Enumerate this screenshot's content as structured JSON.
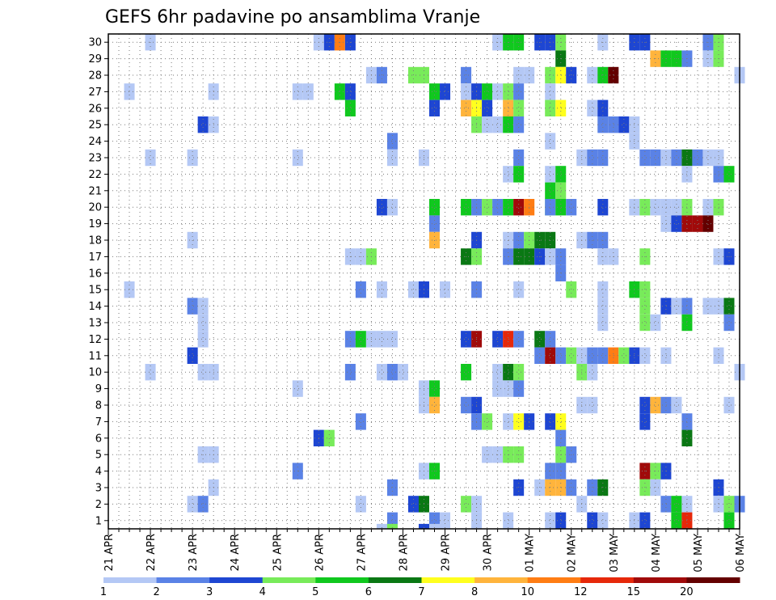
{
  "chart_data": {
    "type": "heatmap",
    "title": "GEFS 6hr padavine po ansamblima Vranje",
    "y_members": [
      1,
      30
    ],
    "y_ticks": [
      "1",
      "2",
      "3",
      "4",
      "5",
      "6",
      "7",
      "8",
      "9",
      "10",
      "11",
      "12",
      "13",
      "14",
      "15",
      "16",
      "17",
      "18",
      "19",
      "20",
      "21",
      "22",
      "23",
      "24",
      "25",
      "26",
      "27",
      "28",
      "29",
      "30"
    ],
    "x_range": [
      0,
      60
    ],
    "x_ticks": [
      {
        "t": 0,
        "label": "21 APR"
      },
      {
        "t": 4,
        "label": "22 APR"
      },
      {
        "t": 8,
        "label": "23 APR"
      },
      {
        "t": 12,
        "label": "24 APR"
      },
      {
        "t": 16,
        "label": "25 APR"
      },
      {
        "t": 20,
        "label": "26 APR"
      },
      {
        "t": 24,
        "label": "27 APR"
      },
      {
        "t": 28,
        "label": "28 APR"
      },
      {
        "t": 32,
        "label": "29 APR"
      },
      {
        "t": 36,
        "label": "30 APR"
      },
      {
        "t": 40,
        "label": "01 MAY"
      },
      {
        "t": 44,
        "label": "02 MAY"
      },
      {
        "t": 48,
        "label": "03 MAY"
      },
      {
        "t": 52,
        "label": "04 MAY"
      },
      {
        "t": 56,
        "label": "05 MAY"
      },
      {
        "t": 60,
        "label": "06 MAY"
      }
    ],
    "legend": {
      "boundaries": [
        "1",
        "2",
        "3",
        "4",
        "5",
        "6",
        "7",
        "8",
        "10",
        "12",
        "15",
        "20"
      ],
      "colors": [
        "#b4c8f5",
        "#5a82e6",
        "#1e46d2",
        "#78eb5a",
        "#10c81e",
        "#0a7814",
        "#ffff1e",
        "#ffb43c",
        "#ff7d14",
        "#e6280a",
        "#a00a0a",
        "#640000"
      ]
    },
    "cells": [
      [
        4,
        30,
        0
      ],
      [
        20,
        30,
        0
      ],
      [
        21,
        30,
        2
      ],
      [
        22,
        30,
        8
      ],
      [
        23,
        30,
        2
      ],
      [
        37,
        30,
        0
      ],
      [
        38,
        30,
        4
      ],
      [
        39,
        30,
        4
      ],
      [
        41,
        30,
        2
      ],
      [
        42,
        30,
        2
      ],
      [
        43,
        30,
        3
      ],
      [
        47,
        30,
        0
      ],
      [
        50,
        30,
        2
      ],
      [
        51,
        30,
        2
      ],
      [
        57,
        30,
        1
      ],
      [
        58,
        30,
        3
      ],
      [
        43,
        29,
        5
      ],
      [
        52,
        29,
        7
      ],
      [
        53,
        29,
        4
      ],
      [
        54,
        29,
        4
      ],
      [
        55,
        29,
        1
      ],
      [
        57,
        29,
        0
      ],
      [
        58,
        29,
        3
      ],
      [
        25,
        28,
        0
      ],
      [
        26,
        28,
        1
      ],
      [
        29,
        28,
        3
      ],
      [
        30,
        28,
        3
      ],
      [
        34,
        28,
        1
      ],
      [
        39,
        28,
        0
      ],
      [
        40,
        28,
        0
      ],
      [
        42,
        28,
        3
      ],
      [
        43,
        28,
        6
      ],
      [
        44,
        28,
        2
      ],
      [
        46,
        28,
        0
      ],
      [
        47,
        28,
        4
      ],
      [
        48,
        28,
        11
      ],
      [
        60,
        28,
        0
      ],
      [
        2,
        27,
        0
      ],
      [
        10,
        27,
        0
      ],
      [
        18,
        27,
        0
      ],
      [
        19,
        27,
        0
      ],
      [
        22,
        27,
        4
      ],
      [
        23,
        27,
        2
      ],
      [
        31,
        27,
        4
      ],
      [
        32,
        27,
        2
      ],
      [
        34,
        27,
        0
      ],
      [
        35,
        27,
        2
      ],
      [
        36,
        27,
        4
      ],
      [
        37,
        27,
        0
      ],
      [
        38,
        27,
        3
      ],
      [
        39,
        27,
        1
      ],
      [
        42,
        27,
        0
      ],
      [
        23,
        26,
        4
      ],
      [
        31,
        26,
        2
      ],
      [
        34,
        26,
        7
      ],
      [
        35,
        26,
        6
      ],
      [
        36,
        26,
        2
      ],
      [
        38,
        26,
        7
      ],
      [
        39,
        26,
        3
      ],
      [
        42,
        26,
        3
      ],
      [
        43,
        26,
        6
      ],
      [
        46,
        26,
        0
      ],
      [
        47,
        26,
        2
      ],
      [
        9,
        25,
        2
      ],
      [
        10,
        25,
        0
      ],
      [
        35,
        25,
        3
      ],
      [
        36,
        25,
        0
      ],
      [
        37,
        25,
        0
      ],
      [
        38,
        25,
        4
      ],
      [
        39,
        25,
        1
      ],
      [
        47,
        25,
        1
      ],
      [
        48,
        25,
        1
      ],
      [
        49,
        25,
        2
      ],
      [
        50,
        25,
        0
      ],
      [
        27,
        24,
        1
      ],
      [
        42,
        24,
        0
      ],
      [
        50,
        24,
        0
      ],
      [
        4,
        23,
        0
      ],
      [
        8,
        23,
        0
      ],
      [
        18,
        23,
        0
      ],
      [
        27,
        23,
        0
      ],
      [
        30,
        23,
        0
      ],
      [
        39,
        23,
        1
      ],
      [
        45,
        23,
        0
      ],
      [
        46,
        23,
        1
      ],
      [
        47,
        23,
        1
      ],
      [
        51,
        23,
        1
      ],
      [
        52,
        23,
        1
      ],
      [
        53,
        23,
        0
      ],
      [
        54,
        23,
        1
      ],
      [
        55,
        23,
        5
      ],
      [
        56,
        23,
        1
      ],
      [
        57,
        23,
        0
      ],
      [
        58,
        23,
        0
      ],
      [
        38,
        22,
        0
      ],
      [
        39,
        22,
        4
      ],
      [
        42,
        22,
        0
      ],
      [
        43,
        22,
        4
      ],
      [
        55,
        22,
        0
      ],
      [
        58,
        22,
        1
      ],
      [
        59,
        22,
        4
      ],
      [
        42,
        21,
        4
      ],
      [
        43,
        21,
        3
      ],
      [
        42,
        20,
        3
      ],
      [
        43,
        20,
        4
      ],
      [
        44,
        20,
        1
      ],
      [
        26,
        20,
        2
      ],
      [
        27,
        20,
        0
      ],
      [
        31,
        20,
        4
      ],
      [
        34,
        20,
        4
      ],
      [
        35,
        20,
        1
      ],
      [
        36,
        20,
        3
      ],
      [
        37,
        20,
        1
      ],
      [
        38,
        20,
        4
      ],
      [
        39,
        20,
        10
      ],
      [
        40,
        20,
        8
      ],
      [
        42,
        20,
        1
      ],
      [
        47,
        20,
        2
      ],
      [
        50,
        20,
        0
      ],
      [
        51,
        20,
        3
      ],
      [
        52,
        20,
        0
      ],
      [
        53,
        20,
        0
      ],
      [
        54,
        20,
        0
      ],
      [
        55,
        20,
        3
      ],
      [
        57,
        20,
        0
      ],
      [
        58,
        20,
        3
      ],
      [
        31,
        19,
        1
      ],
      [
        53,
        19,
        0
      ],
      [
        54,
        19,
        2
      ],
      [
        55,
        19,
        10
      ],
      [
        56,
        19,
        10
      ],
      [
        57,
        19,
        11
      ],
      [
        8,
        18,
        0
      ],
      [
        31,
        18,
        7
      ],
      [
        35,
        18,
        2
      ],
      [
        38,
        18,
        0
      ],
      [
        39,
        18,
        1
      ],
      [
        40,
        18,
        3
      ],
      [
        41,
        18,
        5
      ],
      [
        42,
        18,
        5
      ],
      [
        45,
        18,
        0
      ],
      [
        46,
        18,
        1
      ],
      [
        47,
        18,
        1
      ],
      [
        23,
        17,
        0
      ],
      [
        24,
        17,
        0
      ],
      [
        25,
        17,
        3
      ],
      [
        34,
        17,
        5
      ],
      [
        35,
        17,
        3
      ],
      [
        38,
        17,
        1
      ],
      [
        39,
        17,
        5
      ],
      [
        40,
        17,
        5
      ],
      [
        41,
        17,
        2
      ],
      [
        42,
        17,
        0
      ],
      [
        43,
        17,
        1
      ],
      [
        47,
        17,
        0
      ],
      [
        48,
        17,
        0
      ],
      [
        51,
        17,
        3
      ],
      [
        58,
        17,
        0
      ],
      [
        59,
        17,
        2
      ],
      [
        43,
        16,
        1
      ],
      [
        2,
        15,
        0
      ],
      [
        24,
        15,
        1
      ],
      [
        26,
        15,
        0
      ],
      [
        29,
        15,
        0
      ],
      [
        30,
        15,
        2
      ],
      [
        32,
        15,
        0
      ],
      [
        35,
        15,
        1
      ],
      [
        39,
        15,
        0
      ],
      [
        44,
        15,
        3
      ],
      [
        47,
        15,
        0
      ],
      [
        50,
        15,
        4
      ],
      [
        51,
        15,
        3
      ],
      [
        8,
        14,
        1
      ],
      [
        9,
        14,
        0
      ],
      [
        47,
        14,
        0
      ],
      [
        51,
        14,
        3
      ],
      [
        53,
        14,
        2
      ],
      [
        54,
        14,
        0
      ],
      [
        55,
        14,
        1
      ],
      [
        57,
        14,
        0
      ],
      [
        58,
        14,
        0
      ],
      [
        59,
        14,
        5
      ],
      [
        9,
        13,
        0
      ],
      [
        47,
        13,
        0
      ],
      [
        51,
        13,
        3
      ],
      [
        52,
        13,
        0
      ],
      [
        55,
        13,
        4
      ],
      [
        59,
        13,
        1
      ],
      [
        9,
        12,
        0
      ],
      [
        23,
        12,
        1
      ],
      [
        24,
        12,
        4
      ],
      [
        25,
        12,
        0
      ],
      [
        26,
        12,
        0
      ],
      [
        27,
        12,
        0
      ],
      [
        34,
        12,
        2
      ],
      [
        35,
        12,
        10
      ],
      [
        37,
        12,
        2
      ],
      [
        38,
        12,
        9
      ],
      [
        39,
        12,
        1
      ],
      [
        41,
        12,
        5
      ],
      [
        42,
        12,
        1
      ],
      [
        8,
        11,
        2
      ],
      [
        41,
        11,
        1
      ],
      [
        42,
        11,
        10
      ],
      [
        43,
        11,
        1
      ],
      [
        44,
        11,
        3
      ],
      [
        45,
        11,
        0
      ],
      [
        46,
        11,
        1
      ],
      [
        47,
        11,
        1
      ],
      [
        48,
        11,
        8
      ],
      [
        49,
        11,
        3
      ],
      [
        50,
        11,
        2
      ],
      [
        51,
        11,
        0
      ],
      [
        53,
        11,
        0
      ],
      [
        58,
        11,
        0
      ],
      [
        4,
        10,
        0
      ],
      [
        9,
        10,
        0
      ],
      [
        10,
        10,
        0
      ],
      [
        23,
        10,
        1
      ],
      [
        26,
        10,
        0
      ],
      [
        27,
        10,
        1
      ],
      [
        28,
        10,
        0
      ],
      [
        34,
        10,
        4
      ],
      [
        37,
        10,
        0
      ],
      [
        38,
        10,
        5
      ],
      [
        39,
        10,
        3
      ],
      [
        45,
        10,
        3
      ],
      [
        46,
        10,
        0
      ],
      [
        60,
        10,
        0
      ],
      [
        18,
        9,
        0
      ],
      [
        30,
        9,
        0
      ],
      [
        31,
        9,
        4
      ],
      [
        37,
        9,
        0
      ],
      [
        38,
        9,
        0
      ],
      [
        39,
        9,
        1
      ],
      [
        30,
        8,
        0
      ],
      [
        31,
        8,
        7
      ],
      [
        34,
        8,
        1
      ],
      [
        35,
        8,
        2
      ],
      [
        45,
        8,
        0
      ],
      [
        46,
        8,
        0
      ],
      [
        51,
        8,
        2
      ],
      [
        52,
        8,
        7
      ],
      [
        53,
        8,
        1
      ],
      [
        54,
        8,
        0
      ],
      [
        59,
        8,
        0
      ],
      [
        24,
        7,
        1
      ],
      [
        35,
        7,
        1
      ],
      [
        36,
        7,
        3
      ],
      [
        38,
        7,
        0
      ],
      [
        39,
        7,
        6
      ],
      [
        40,
        7,
        2
      ],
      [
        42,
        7,
        2
      ],
      [
        43,
        7,
        6
      ],
      [
        51,
        7,
        2
      ],
      [
        55,
        7,
        1
      ],
      [
        20,
        6,
        2
      ],
      [
        21,
        6,
        3
      ],
      [
        43,
        6,
        1
      ],
      [
        55,
        6,
        5
      ],
      [
        9,
        5,
        0
      ],
      [
        10,
        5,
        0
      ],
      [
        36,
        5,
        0
      ],
      [
        37,
        5,
        0
      ],
      [
        38,
        5,
        3
      ],
      [
        39,
        5,
        3
      ],
      [
        43,
        5,
        3
      ],
      [
        44,
        5,
        1
      ],
      [
        18,
        4,
        1
      ],
      [
        30,
        4,
        0
      ],
      [
        31,
        4,
        4
      ],
      [
        42,
        4,
        1
      ],
      [
        43,
        4,
        1
      ],
      [
        51,
        4,
        10
      ],
      [
        52,
        4,
        3
      ],
      [
        53,
        4,
        2
      ],
      [
        10,
        3,
        0
      ],
      [
        27,
        3,
        1
      ],
      [
        39,
        3,
        2
      ],
      [
        41,
        3,
        0
      ],
      [
        42,
        3,
        7
      ],
      [
        43,
        3,
        7
      ],
      [
        44,
        3,
        1
      ],
      [
        46,
        3,
        1
      ],
      [
        47,
        3,
        5
      ],
      [
        51,
        3,
        3
      ],
      [
        52,
        3,
        0
      ],
      [
        58,
        3,
        2
      ],
      [
        8,
        2,
        0
      ],
      [
        9,
        2,
        1
      ],
      [
        24,
        2,
        0
      ],
      [
        29,
        2,
        2
      ],
      [
        30,
        2,
        5
      ],
      [
        34,
        2,
        3
      ],
      [
        35,
        2,
        0
      ],
      [
        45,
        2,
        0
      ],
      [
        53,
        2,
        1
      ],
      [
        54,
        2,
        4
      ],
      [
        55,
        2,
        0
      ],
      [
        58,
        2,
        0
      ],
      [
        59,
        2,
        3
      ],
      [
        60,
        2,
        1
      ],
      [
        27,
        1,
        1
      ],
      [
        31,
        1,
        1
      ],
      [
        32,
        1,
        0
      ],
      [
        35,
        1,
        0
      ],
      [
        38,
        1,
        0
      ],
      [
        42,
        1,
        0
      ],
      [
        43,
        1,
        2
      ],
      [
        46,
        1,
        2
      ],
      [
        47,
        1,
        0
      ],
      [
        50,
        1,
        0
      ],
      [
        51,
        1,
        2
      ],
      [
        54,
        1,
        4
      ],
      [
        55,
        1,
        9
      ],
      [
        59,
        1,
        4
      ],
      [
        26,
        0,
        0
      ],
      [
        27,
        0,
        3
      ],
      [
        30,
        0,
        2
      ],
      [
        31,
        0,
        0
      ]
    ]
  }
}
